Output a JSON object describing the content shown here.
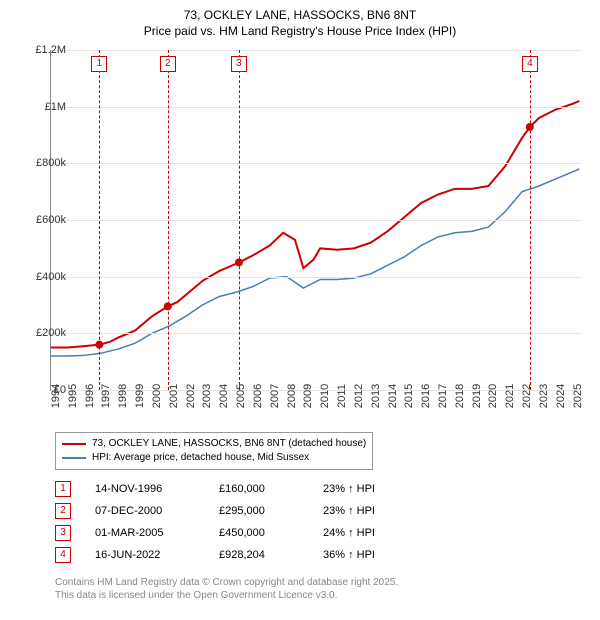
{
  "title": {
    "line1": "73, OCKLEY LANE, HASSOCKS, BN6 8NT",
    "line2": "Price paid vs. HM Land Registry's House Price Index (HPI)",
    "fontsize": 12
  },
  "chart": {
    "type": "line",
    "background_color": "#ffffff",
    "grid_color": "#e5e5e5",
    "axis_color": "#888888",
    "x": {
      "min": 1994,
      "max": 2025.5,
      "tick_step": 1
    },
    "y": {
      "min": 0,
      "max": 1200000,
      "ticks": [
        {
          "v": 0,
          "label": "£0"
        },
        {
          "v": 200000,
          "label": "£200k"
        },
        {
          "v": 400000,
          "label": "£400k"
        },
        {
          "v": 600000,
          "label": "£600k"
        },
        {
          "v": 800000,
          "label": "£800k"
        },
        {
          "v": 1000000,
          "label": "£1M"
        },
        {
          "v": 1200000,
          "label": "£1.2M"
        }
      ]
    },
    "series": [
      {
        "name": "73, OCKLEY LANE, HASSOCKS, BN6 8NT (detached house)",
        "color": "#cc0000",
        "width": 2,
        "points": [
          [
            1994,
            150000
          ],
          [
            1995,
            150000
          ],
          [
            1996,
            155000
          ],
          [
            1996.87,
            160000
          ],
          [
            1997.5,
            170000
          ],
          [
            1998,
            185000
          ],
          [
            1999,
            210000
          ],
          [
            2000,
            260000
          ],
          [
            2000.94,
            295000
          ],
          [
            2001.5,
            310000
          ],
          [
            2002,
            335000
          ],
          [
            2003,
            385000
          ],
          [
            2004,
            420000
          ],
          [
            2005.17,
            450000
          ],
          [
            2006,
            475000
          ],
          [
            2007,
            510000
          ],
          [
            2007.8,
            555000
          ],
          [
            2008.5,
            530000
          ],
          [
            2009,
            430000
          ],
          [
            2009.6,
            460000
          ],
          [
            2010,
            500000
          ],
          [
            2011,
            495000
          ],
          [
            2012,
            500000
          ],
          [
            2013,
            520000
          ],
          [
            2014,
            560000
          ],
          [
            2015,
            610000
          ],
          [
            2016,
            660000
          ],
          [
            2017,
            690000
          ],
          [
            2018,
            710000
          ],
          [
            2019,
            710000
          ],
          [
            2020,
            720000
          ],
          [
            2021,
            790000
          ],
          [
            2022,
            890000
          ],
          [
            2022.46,
            928204
          ],
          [
            2023,
            960000
          ],
          [
            2024,
            990000
          ],
          [
            2025,
            1010000
          ],
          [
            2025.4,
            1020000
          ]
        ],
        "sale_markers": [
          {
            "x": 1996.87,
            "y": 160000
          },
          {
            "x": 2000.94,
            "y": 295000
          },
          {
            "x": 2005.17,
            "y": 450000
          },
          {
            "x": 2022.46,
            "y": 928204
          }
        ]
      },
      {
        "name": "HPI: Average price, detached house, Mid Sussex",
        "color": "#4a7fb0",
        "width": 1.5,
        "points": [
          [
            1994,
            120000
          ],
          [
            1995,
            120000
          ],
          [
            1996,
            122000
          ],
          [
            1997,
            130000
          ],
          [
            1998,
            145000
          ],
          [
            1999,
            165000
          ],
          [
            2000,
            200000
          ],
          [
            2001,
            225000
          ],
          [
            2002,
            260000
          ],
          [
            2003,
            300000
          ],
          [
            2004,
            330000
          ],
          [
            2005,
            345000
          ],
          [
            2006,
            365000
          ],
          [
            2007,
            395000
          ],
          [
            2008,
            400000
          ],
          [
            2009,
            360000
          ],
          [
            2010,
            390000
          ],
          [
            2011,
            390000
          ],
          [
            2012,
            395000
          ],
          [
            2013,
            410000
          ],
          [
            2014,
            440000
          ],
          [
            2015,
            470000
          ],
          [
            2016,
            510000
          ],
          [
            2017,
            540000
          ],
          [
            2018,
            555000
          ],
          [
            2019,
            560000
          ],
          [
            2020,
            575000
          ],
          [
            2021,
            630000
          ],
          [
            2022,
            700000
          ],
          [
            2023,
            720000
          ],
          [
            2024,
            745000
          ],
          [
            2025,
            770000
          ],
          [
            2025.4,
            780000
          ]
        ]
      }
    ],
    "markers": [
      {
        "num": "1",
        "x": 1996.87,
        "color": "#cc0000"
      },
      {
        "num": "2",
        "x": 2000.94,
        "color": "#cc0000"
      },
      {
        "num": "3",
        "x": 2005.17,
        "color": "#cc0000"
      },
      {
        "num": "4",
        "x": 2022.46,
        "color": "#cc0000"
      }
    ]
  },
  "legend": [
    {
      "label": "73, OCKLEY LANE, HASSOCKS, BN6 8NT (detached house)",
      "color": "#cc0000"
    },
    {
      "label": "HPI: Average price, detached house, Mid Sussex",
      "color": "#4a7fb0"
    }
  ],
  "transactions": [
    {
      "num": "1",
      "date": "14-NOV-1996",
      "price": "£160,000",
      "delta": "23% ↑ HPI",
      "color": "#cc0000"
    },
    {
      "num": "2",
      "date": "07-DEC-2000",
      "price": "£295,000",
      "delta": "23% ↑ HPI",
      "color": "#cc0000"
    },
    {
      "num": "3",
      "date": "01-MAR-2005",
      "price": "£450,000",
      "delta": "24% ↑ HPI",
      "color": "#cc0000"
    },
    {
      "num": "4",
      "date": "16-JUN-2022",
      "price": "£928,204",
      "delta": "36% ↑ HPI",
      "color": "#cc0000"
    }
  ],
  "footer": {
    "line1": "Contains HM Land Registry data © Crown copyright and database right 2025.",
    "line2": "This data is licensed under the Open Government Licence v3.0."
  }
}
